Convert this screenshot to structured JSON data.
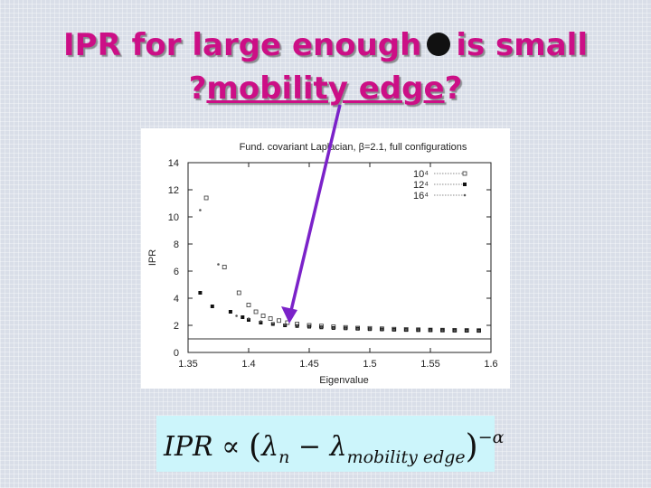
{
  "slide": {
    "title_line1_a": "IPR for large enough",
    "title_line1_b": "is small",
    "title_line2_q1": "?",
    "title_line2_u": "mobility edge",
    "title_line2_q2": "?"
  },
  "formula": {
    "lhs": "IPR",
    "prop": "∝",
    "lambda": "λ",
    "sub_n": "n",
    "minus": "−",
    "sub_edge": "mobility edge",
    "exponent": "−α"
  },
  "colors": {
    "title": "#cc0f86",
    "arrow": "#7b22c9",
    "formula_bg": "#ccf5fb"
  },
  "chart_data": {
    "type": "scatter",
    "title": "Fund. covariant Laplacian, β=2.1, full configurations",
    "xlabel": "Eigenvalue",
    "ylabel": "IPR",
    "xlim": [
      1.35,
      1.6
    ],
    "ylim": [
      0,
      14
    ],
    "xticks": [
      "1.35",
      "1.4",
      "1.45",
      "1.5",
      "1.55",
      "1.6"
    ],
    "yticks": [
      "0",
      "2",
      "4",
      "6",
      "8",
      "10",
      "12",
      "14"
    ],
    "horizontal_line_y": 1,
    "legend_position": "top-right",
    "series": [
      {
        "name": "10⁴",
        "marker": "open-square",
        "x": [
          1.365,
          1.38,
          1.392,
          1.4,
          1.406,
          1.412,
          1.418,
          1.425,
          1.432,
          1.44,
          1.45,
          1.46,
          1.47,
          1.48,
          1.49,
          1.5,
          1.51,
          1.52,
          1.53,
          1.54,
          1.55,
          1.56,
          1.57,
          1.58,
          1.59
        ],
        "y": [
          11.4,
          6.3,
          4.4,
          3.5,
          3.0,
          2.7,
          2.5,
          2.35,
          2.2,
          2.1,
          2.0,
          1.95,
          1.9,
          1.85,
          1.8,
          1.78,
          1.75,
          1.72,
          1.7,
          1.68,
          1.66,
          1.65,
          1.64,
          1.63,
          1.62
        ]
      },
      {
        "name": "12⁴",
        "marker": "filled-square",
        "x": [
          1.36,
          1.37,
          1.385,
          1.395,
          1.4,
          1.41,
          1.42,
          1.43,
          1.44,
          1.45,
          1.46,
          1.47,
          1.48,
          1.49,
          1.5,
          1.51,
          1.52,
          1.53,
          1.54,
          1.55,
          1.56,
          1.57,
          1.58,
          1.59
        ],
        "y": [
          4.4,
          3.4,
          3.0,
          2.6,
          2.4,
          2.2,
          2.1,
          2.0,
          1.95,
          1.9,
          1.85,
          1.8,
          1.78,
          1.75,
          1.72,
          1.7,
          1.68,
          1.66,
          1.65,
          1.64,
          1.63,
          1.62,
          1.61,
          1.6
        ]
      },
      {
        "name": "16⁴",
        "marker": "small-dot",
        "x": [
          1.36,
          1.375,
          1.39,
          1.4,
          1.41,
          1.42,
          1.43,
          1.44,
          1.45,
          1.46,
          1.47,
          1.48,
          1.49,
          1.5,
          1.51,
          1.52,
          1.53,
          1.54,
          1.55,
          1.56,
          1.57,
          1.58,
          1.59
        ],
        "y": [
          10.5,
          6.5,
          2.7,
          2.5,
          2.3,
          2.15,
          2.05,
          1.98,
          1.9,
          1.85,
          1.8,
          1.77,
          1.74,
          1.72,
          1.7,
          1.68,
          1.66,
          1.65,
          1.64,
          1.63,
          1.62,
          1.61,
          1.6
        ]
      }
    ]
  }
}
